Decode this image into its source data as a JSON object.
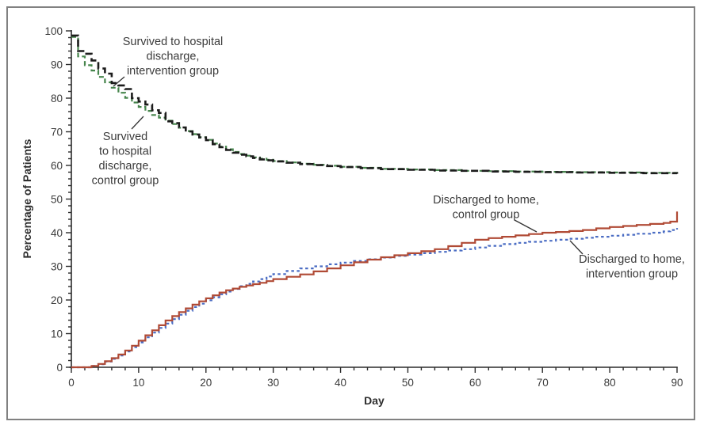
{
  "figure": {
    "type_label": "Kaplan-Meier style step chart",
    "background": "#ffffff",
    "frame_color": "#818181"
  },
  "chart_data": {
    "type": "line",
    "subtype": "step-survival-curves",
    "title": "",
    "xlabel": "Day",
    "ylabel": "Percentage of Patients",
    "xlim": [
      0,
      90
    ],
    "ylim": [
      0,
      100
    ],
    "grid": false,
    "legend_position": "inline-annotations",
    "x_major_ticks": [
      0,
      10,
      20,
      30,
      40,
      50,
      60,
      70,
      80,
      90
    ],
    "x_minor_step": 2,
    "y_major_ticks": [
      0,
      10,
      20,
      30,
      40,
      50,
      60,
      70,
      80,
      90,
      100
    ],
    "y_minor_step": 2,
    "axis_color": "#2b2b2b",
    "text_color": "#3b3b3b",
    "series": [
      {
        "name": "Survived to hospital discharge, control group",
        "color": "#46854c",
        "dash": "6,3.5",
        "width": 2.2,
        "step": true,
        "points": [
          [
            0,
            98.2
          ],
          [
            1,
            92.4
          ],
          [
            2,
            89.8
          ],
          [
            3,
            88.2
          ],
          [
            4,
            86.3
          ],
          [
            5,
            84.7
          ],
          [
            6,
            83.1
          ],
          [
            7,
            81.6
          ],
          [
            8,
            80.1
          ],
          [
            9,
            78.7
          ],
          [
            10,
            77.4
          ],
          [
            11,
            76.2
          ],
          [
            12,
            75
          ],
          [
            13,
            74.2
          ],
          [
            14,
            73.3
          ],
          [
            15,
            72.3
          ],
          [
            16,
            71.2
          ],
          [
            17,
            70.2
          ],
          [
            18,
            69.3
          ],
          [
            19,
            68.4
          ],
          [
            20,
            67.6
          ],
          [
            21,
            66.5
          ],
          [
            22,
            65.6
          ],
          [
            23,
            64.8
          ],
          [
            24,
            64
          ],
          [
            25,
            63.4
          ],
          [
            26,
            62.9
          ],
          [
            27,
            62.4
          ],
          [
            28,
            62
          ],
          [
            29,
            61.7
          ],
          [
            30,
            61.3
          ],
          [
            32,
            60.9
          ],
          [
            34,
            60.5
          ],
          [
            36,
            60.2
          ],
          [
            38,
            59.9
          ],
          [
            40,
            59.6
          ],
          [
            43,
            59.3
          ],
          [
            46,
            59
          ],
          [
            50,
            58.8
          ],
          [
            54,
            58.6
          ],
          [
            58,
            58.4
          ],
          [
            62,
            58.3
          ],
          [
            66,
            58.2
          ],
          [
            70,
            58.1
          ],
          [
            75,
            58
          ],
          [
            80,
            57.9
          ],
          [
            85,
            57.8
          ],
          [
            90,
            57.6
          ]
        ]
      },
      {
        "name": "Survived to hospital discharge, intervention group",
        "color": "#1c1c1c",
        "dash": "9,4.5",
        "width": 2.6,
        "step": true,
        "points": [
          [
            0,
            98.6
          ],
          [
            1,
            94
          ],
          [
            2,
            93.2
          ],
          [
            3,
            91.2
          ],
          [
            4,
            88.8
          ],
          [
            5,
            87.3
          ],
          [
            6,
            84.5
          ],
          [
            7,
            83.8
          ],
          [
            8,
            82.7
          ],
          [
            9,
            80
          ],
          [
            10,
            79
          ],
          [
            11,
            78.1
          ],
          [
            12,
            76.4
          ],
          [
            13,
            75.6
          ],
          [
            14,
            73.1
          ],
          [
            15,
            72.6
          ],
          [
            16,
            71.3
          ],
          [
            17,
            70.1
          ],
          [
            18,
            69.2
          ],
          [
            19,
            68.3
          ],
          [
            20,
            67.5
          ],
          [
            21,
            66.3
          ],
          [
            22,
            65.4
          ],
          [
            23,
            64.6
          ],
          [
            24,
            63.8
          ],
          [
            25,
            63.2
          ],
          [
            26,
            62.7
          ],
          [
            27,
            62.2
          ],
          [
            28,
            61.8
          ],
          [
            29,
            61.5
          ],
          [
            30,
            61.2
          ],
          [
            32,
            60.8
          ],
          [
            34,
            60.4
          ],
          [
            36,
            60.1
          ],
          [
            38,
            59.8
          ],
          [
            40,
            59.5
          ],
          [
            43,
            59.2
          ],
          [
            46,
            58.9
          ],
          [
            50,
            58.7
          ],
          [
            54,
            58.5
          ],
          [
            58,
            58.4
          ],
          [
            62,
            58.2
          ],
          [
            66,
            58.1
          ],
          [
            70,
            58
          ],
          [
            75,
            57.9
          ],
          [
            80,
            57.8
          ],
          [
            85,
            57.7
          ],
          [
            90,
            57.5
          ]
        ]
      },
      {
        "name": "Discharged to home, intervention group",
        "color": "#4a6cc3",
        "dash": "3.5,3.5",
        "width": 2.2,
        "step": true,
        "points": [
          [
            0,
            0
          ],
          [
            3,
            0.4
          ],
          [
            4,
            0.9
          ],
          [
            5,
            1.7
          ],
          [
            6,
            2.5
          ],
          [
            7,
            3.5
          ],
          [
            8,
            4.7
          ],
          [
            9,
            6
          ],
          [
            10,
            7.4
          ],
          [
            11,
            8.9
          ],
          [
            12,
            10.3
          ],
          [
            13,
            11.7
          ],
          [
            14,
            13
          ],
          [
            15,
            14.3
          ],
          [
            16,
            15.6
          ],
          [
            17,
            16.8
          ],
          [
            18,
            17.9
          ],
          [
            19,
            18.9
          ],
          [
            20,
            19.9
          ],
          [
            21,
            20.8
          ],
          [
            22,
            21.7
          ],
          [
            23,
            22.5
          ],
          [
            24,
            23.3
          ],
          [
            25,
            24.1
          ],
          [
            26,
            24.8
          ],
          [
            27,
            25.5
          ],
          [
            28,
            26.2
          ],
          [
            29,
            27
          ],
          [
            30,
            27.7
          ],
          [
            32,
            28.6
          ],
          [
            34,
            29.4
          ],
          [
            36,
            30
          ],
          [
            38,
            30.6
          ],
          [
            40,
            31.1
          ],
          [
            42,
            31.6
          ],
          [
            44,
            32.1
          ],
          [
            46,
            32.6
          ],
          [
            48,
            33.1
          ],
          [
            50,
            33.5
          ],
          [
            52,
            33.9
          ],
          [
            54,
            34.3
          ],
          [
            56,
            34.7
          ],
          [
            58,
            35.1
          ],
          [
            60,
            35.6
          ],
          [
            62,
            36.1
          ],
          [
            64,
            36.6
          ],
          [
            66,
            37
          ],
          [
            68,
            37.3
          ],
          [
            70,
            37.6
          ],
          [
            72,
            37.9
          ],
          [
            74,
            38.2
          ],
          [
            76,
            38.5
          ],
          [
            78,
            38.8
          ],
          [
            80,
            39.1
          ],
          [
            82,
            39.4
          ],
          [
            84,
            39.7
          ],
          [
            86,
            40
          ],
          [
            88,
            40.4
          ],
          [
            89,
            40.8
          ],
          [
            90,
            41.4
          ]
        ]
      },
      {
        "name": "Discharged to home, control group",
        "color": "#b04a35",
        "dash": null,
        "width": 2.2,
        "step": true,
        "points": [
          [
            0,
            0
          ],
          [
            3,
            0.4
          ],
          [
            4,
            1
          ],
          [
            5,
            1.8
          ],
          [
            6,
            2.7
          ],
          [
            7,
            3.8
          ],
          [
            8,
            5
          ],
          [
            9,
            6.4
          ],
          [
            10,
            7.9
          ],
          [
            11,
            9.5
          ],
          [
            12,
            11
          ],
          [
            13,
            12.5
          ],
          [
            14,
            13.9
          ],
          [
            15,
            15.2
          ],
          [
            16,
            16.4
          ],
          [
            17,
            17.5
          ],
          [
            18,
            18.6
          ],
          [
            19,
            19.6
          ],
          [
            20,
            20.5
          ],
          [
            21,
            21.4
          ],
          [
            22,
            22.2
          ],
          [
            23,
            22.9
          ],
          [
            24,
            23.4
          ],
          [
            25,
            23.9
          ],
          [
            26,
            24.3
          ],
          [
            27,
            24.7
          ],
          [
            28,
            25.1
          ],
          [
            29,
            25.6
          ],
          [
            30,
            26.2
          ],
          [
            32,
            26.9
          ],
          [
            34,
            27.6
          ],
          [
            36,
            28.5
          ],
          [
            38,
            29.4
          ],
          [
            40,
            30.3
          ],
          [
            42,
            31.2
          ],
          [
            44,
            32
          ],
          [
            46,
            32.7
          ],
          [
            48,
            33.3
          ],
          [
            50,
            33.9
          ],
          [
            52,
            34.5
          ],
          [
            54,
            35.1
          ],
          [
            56,
            36
          ],
          [
            58,
            37
          ],
          [
            60,
            37.9
          ],
          [
            62,
            38.4
          ],
          [
            64,
            38.8
          ],
          [
            66,
            39.2
          ],
          [
            68,
            39.6
          ],
          [
            70,
            40
          ],
          [
            72,
            40.2
          ],
          [
            74,
            40.5
          ],
          [
            76,
            40.8
          ],
          [
            78,
            41.3
          ],
          [
            80,
            41.7
          ],
          [
            82,
            42
          ],
          [
            84,
            42.3
          ],
          [
            86,
            42.6
          ],
          [
            88,
            42.9
          ],
          [
            89,
            43.3
          ],
          [
            90,
            46.3
          ]
        ]
      }
    ],
    "annotations": [
      {
        "id": "survived-intervention-label",
        "lines": [
          "Survived to hospital",
          "discharge,",
          "intervention group"
        ],
        "x": 218,
        "y": 57,
        "line_height": 18.5,
        "pointer": [
          [
            157,
            97
          ],
          [
            143,
            109
          ]
        ]
      },
      {
        "id": "survived-control-label",
        "lines": [
          "Survived",
          "to hospital",
          "discharge,",
          "control group"
        ],
        "x": 158,
        "y": 177,
        "line_height": 18.5,
        "pointer": [
          [
            166,
            163
          ],
          [
            181,
            147
          ]
        ]
      },
      {
        "id": "discharged-control-label",
        "lines": [
          "Discharged to home,",
          "control group"
        ],
        "x": 613,
        "y": 257,
        "line_height": 18.5,
        "pointer": [
          [
            649,
            278
          ],
          [
            677,
            293
          ]
        ]
      },
      {
        "id": "discharged-intervention-label",
        "lines": [
          "Discharged to home,",
          "intervention group"
        ],
        "x": 797,
        "y": 332,
        "line_height": 18.5,
        "pointer": [
          [
            735,
            321
          ],
          [
            719,
            304
          ]
        ]
      }
    ]
  }
}
